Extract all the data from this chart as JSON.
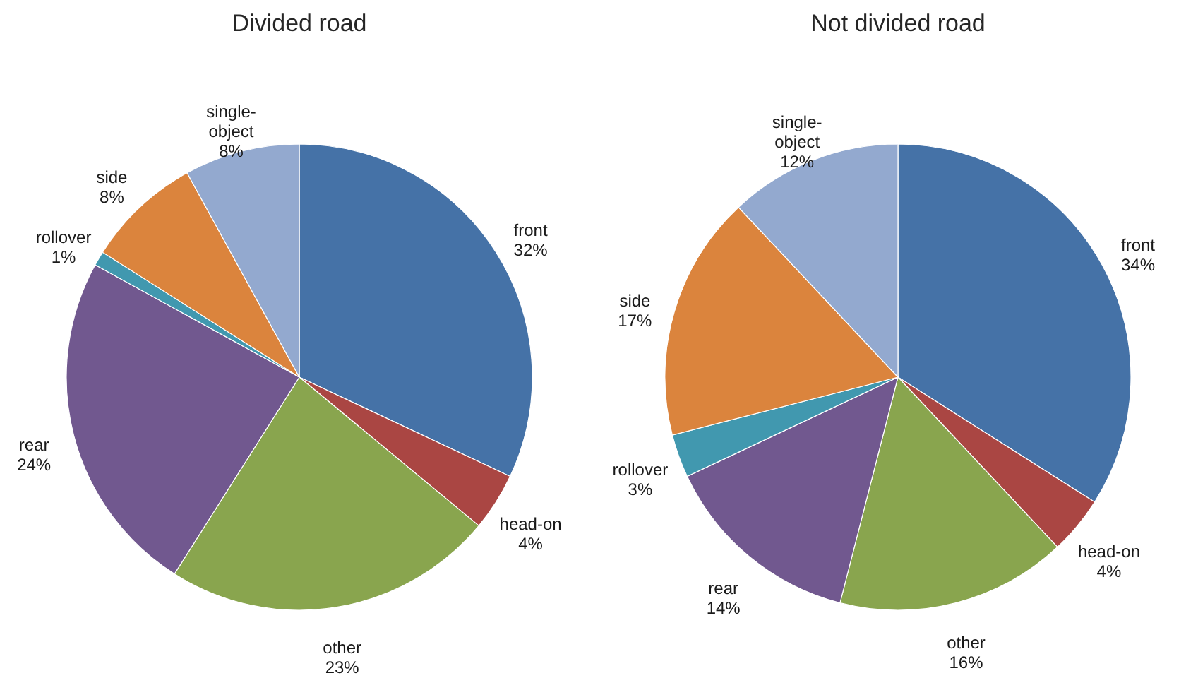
{
  "chart_data": [
    {
      "type": "pie",
      "title": "Divided road",
      "categories": [
        "front",
        "head-on",
        "other",
        "rear",
        "rollover",
        "side",
        "single-object"
      ],
      "values": [
        32,
        4,
        23,
        24,
        1,
        8,
        8
      ],
      "value_labels": [
        "32%",
        "4%",
        "23%",
        "24%",
        "1%",
        "8%",
        "8%"
      ],
      "colors": [
        "#4572a7",
        "#aa4643",
        "#89a54e",
        "#71588f",
        "#4198af",
        "#db843d",
        "#93a9cf"
      ]
    },
    {
      "type": "pie",
      "title": "Not divided road",
      "categories": [
        "front",
        "head-on",
        "other",
        "rear",
        "rollover",
        "side",
        "single-object"
      ],
      "values": [
        34,
        4,
        16,
        14,
        3,
        17,
        12
      ],
      "value_labels": [
        "34%",
        "4%",
        "16%",
        "14%",
        "3%",
        "17%",
        "12%"
      ],
      "colors": [
        "#4572a7",
        "#aa4643",
        "#89a54e",
        "#71588f",
        "#4198af",
        "#db843d",
        "#93a9cf"
      ]
    }
  ]
}
